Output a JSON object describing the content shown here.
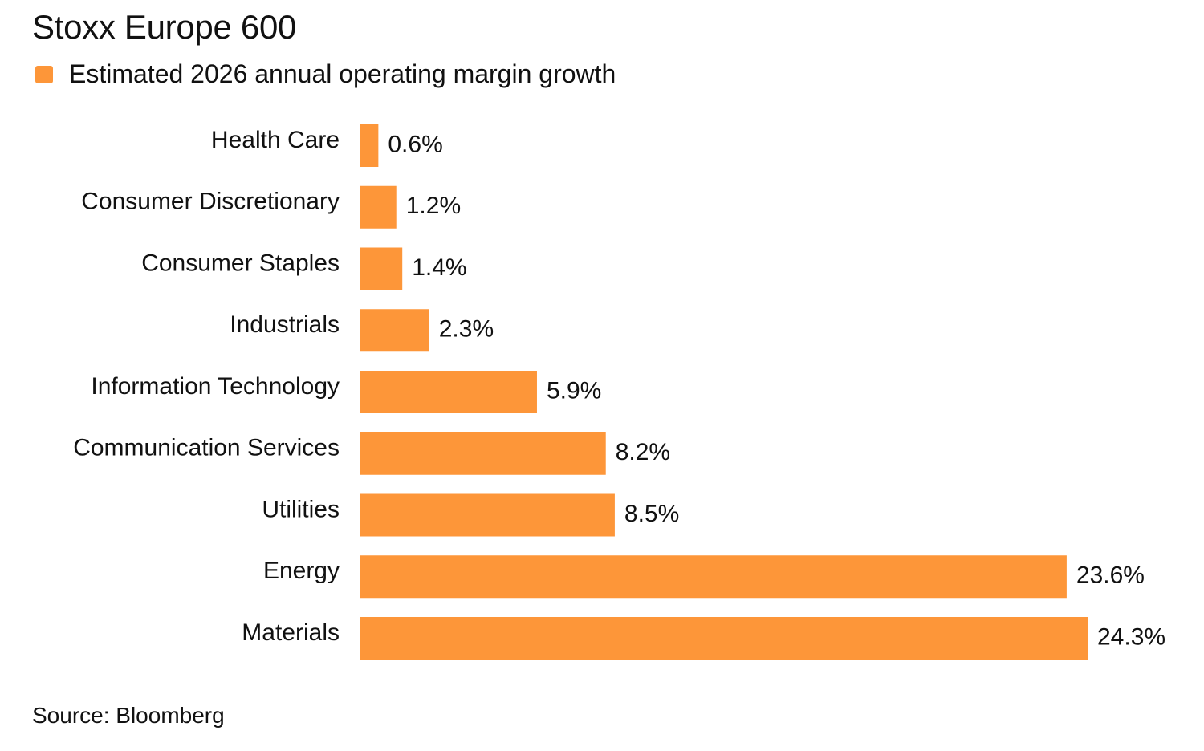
{
  "title": "Stoxx Europe 600",
  "legend": {
    "label": "Estimated 2026 annual operating margin growth",
    "color": "#FD9639"
  },
  "source": "Source: Bloomberg",
  "chart_data": {
    "type": "bar",
    "orientation": "horizontal",
    "title": "Stoxx Europe 600",
    "categories": [
      "Health Care",
      "Consumer Discretionary",
      "Consumer Staples",
      "Industrials",
      "Information Technology",
      "Communication Services",
      "Utilities",
      "Energy",
      "Materials"
    ],
    "series": [
      {
        "name": "Estimated 2026 annual operating margin growth",
        "color": "#FD9639",
        "values": [
          0.6,
          1.2,
          1.4,
          2.3,
          5.9,
          8.2,
          8.5,
          23.6,
          24.3
        ],
        "labels": [
          "0.6%",
          "1.2%",
          "1.4%",
          "2.3%",
          "5.9%",
          "8.2%",
          "8.5%",
          "23.6%",
          "24.3%"
        ]
      }
    ],
    "xlim": [
      0,
      24.3
    ],
    "grid": false,
    "legend_position": "top-left"
  }
}
